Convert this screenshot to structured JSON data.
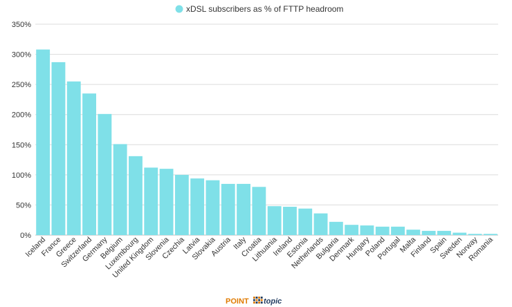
{
  "chart_data": {
    "type": "bar",
    "title": "",
    "xlabel": "",
    "ylabel": "",
    "legend": {
      "placement": "top-center",
      "entries": [
        "xDSL subscribers as % of FTTP headroom"
      ]
    },
    "grid": true,
    "ylim": [
      0,
      350
    ],
    "yticks": [
      0,
      50,
      100,
      150,
      200,
      250,
      300,
      350
    ],
    "ytick_labels": [
      "0%",
      "50%",
      "100%",
      "150%",
      "200%",
      "250%",
      "300%",
      "350%"
    ],
    "categories": [
      "Iceland",
      "France",
      "Greece",
      "Switzerland",
      "Germany",
      "Belgium",
      "Luxembourg",
      "United Kingdom",
      "Slovenia",
      "Czechia",
      "Latvia",
      "Slovakia",
      "Austria",
      "Italy",
      "Croatia",
      "Lithuania",
      "Ireland",
      "Estonia",
      "Netherlands",
      "Bulgaria",
      "Denmark",
      "Hungary",
      "Poland",
      "Portugal",
      "Malta",
      "Finland",
      "Spain",
      "Sweden",
      "Norway",
      "Romania"
    ],
    "series": [
      {
        "name": "xDSL subscribers as % of FTTP headroom",
        "color": "#7fe0e8",
        "values": [
          308,
          287,
          255,
          235,
          201,
          151,
          131,
          112,
          110,
          100,
          94,
          91,
          85,
          85,
          80,
          48,
          47,
          44,
          36,
          22,
          17,
          16,
          14,
          14,
          9,
          7,
          7,
          4,
          2,
          2
        ]
      }
    ]
  },
  "branding": {
    "point": "POINT",
    "topic": "topic",
    "point_color": "#e07b00",
    "topic_color": "#1f3a5f"
  }
}
